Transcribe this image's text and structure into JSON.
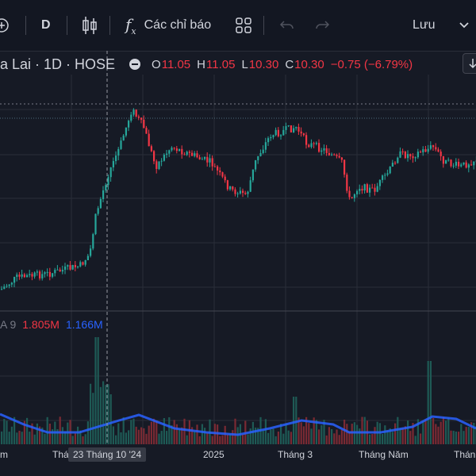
{
  "toolbar": {
    "add_icon": "plus-circle-icon",
    "interval_label": "D",
    "chart_type_icon": "candles-icon",
    "indicators_label": "Các chỉ báo",
    "indicators_icon": "fx-icon",
    "layout_icon": "grid-icon",
    "undo_icon": "undo-icon",
    "redo_icon": "redo-icon",
    "save_label": "Lưu",
    "dropdown_icon": "chevron-down-icon"
  },
  "legend": {
    "symbol": "a Lai · 1D · HOSE",
    "open_key": "O",
    "open": "11.05",
    "high_key": "H",
    "high": "11.05",
    "low_key": "L",
    "low": "10.30",
    "close_key": "C",
    "close": "10.30",
    "change": "−0.75 (−6.79%)"
  },
  "volume_legend": {
    "name": "A 9",
    "value1": "1.805M",
    "value2": "1.166M"
  },
  "time_axis": {
    "labels": [
      "m",
      "Thá",
      "2025",
      "Tháng 3",
      "Tháng Năm",
      "Thán"
    ],
    "crosshair": "23 Tháng 10 '24"
  },
  "colors": {
    "up": "#26a69a",
    "down": "#f23645",
    "volume_ma": "#2962ff",
    "background": "#161a25"
  },
  "chart_data": {
    "type": "candlestick",
    "seed": 7,
    "start_price": 6.5,
    "peak_price": 14.0
  }
}
